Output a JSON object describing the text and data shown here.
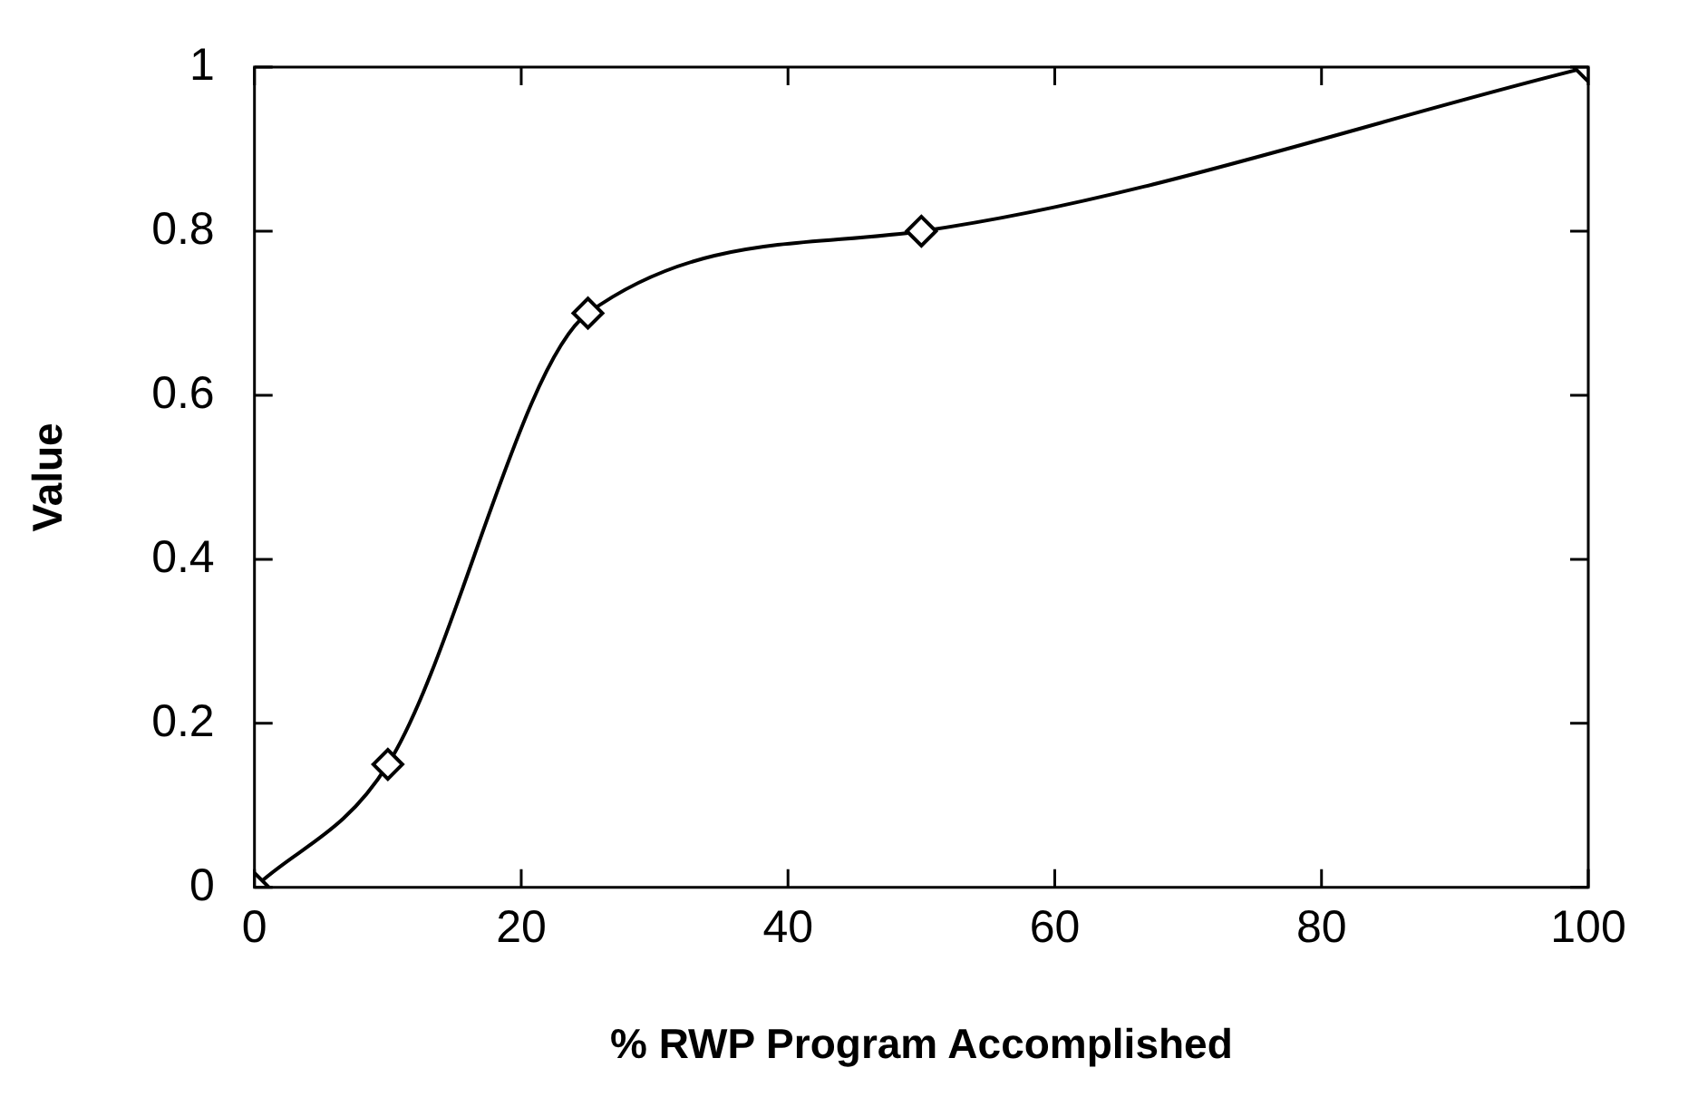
{
  "chart_data": {
    "type": "line",
    "xlabel": "% RWP Program Accomplished",
    "ylabel": "Value",
    "x": [
      0,
      10,
      25,
      50,
      100
    ],
    "series": [
      {
        "color": "#000000",
        "values": [
          0,
          0.15,
          0.7,
          0.8,
          1
        ]
      }
    ],
    "xlim": [
      0,
      100
    ],
    "xticks": [
      0,
      20,
      40,
      60,
      80,
      100
    ],
    "ylim": [
      0,
      1
    ],
    "yticks": [
      0,
      0.2,
      0.4,
      0.6,
      0.8,
      1
    ],
    "grid": false,
    "legend": false,
    "marker": "diamond",
    "line_style": "solid"
  }
}
